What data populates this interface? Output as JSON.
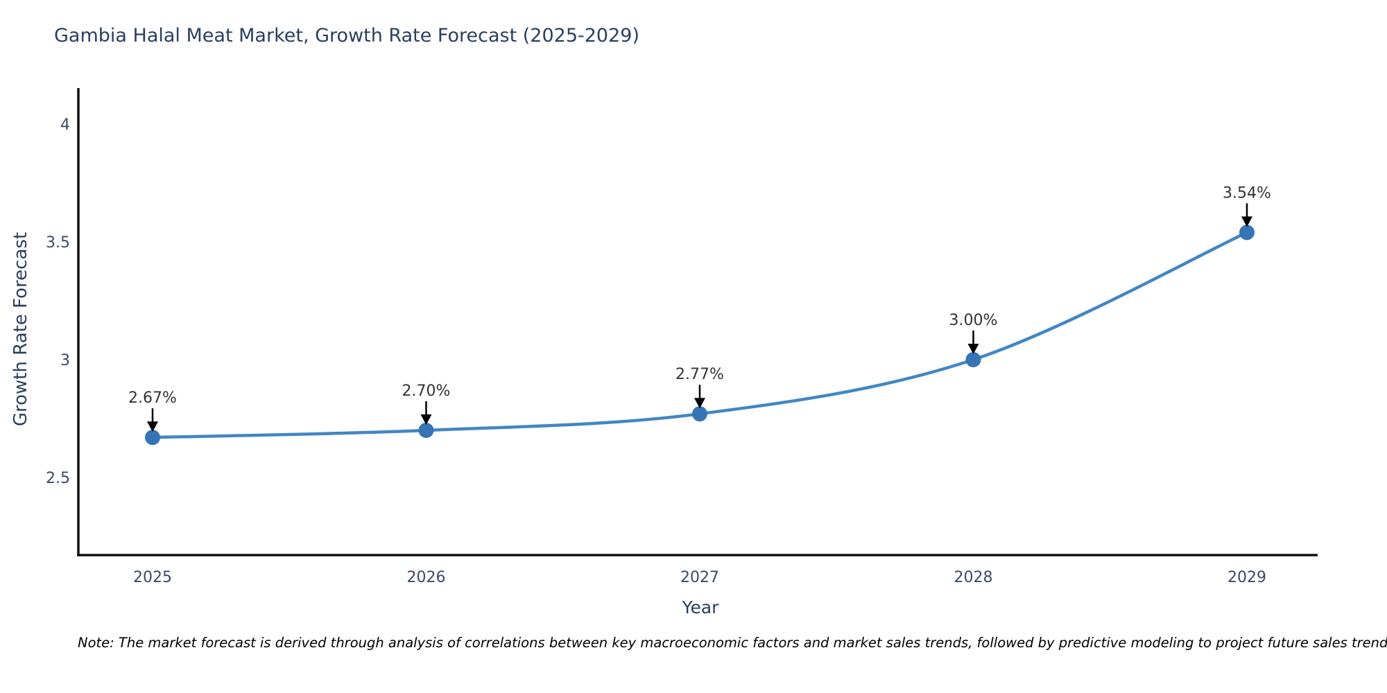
{
  "chart_data": {
    "type": "line",
    "title": "Gambia Halal Meat Market, Growth Rate Forecast (2025-2029)",
    "xlabel": "Year",
    "ylabel": "Growth Rate Forecast",
    "x": [
      2025,
      2026,
      2027,
      2028,
      2029
    ],
    "y": [
      2.67,
      2.7,
      2.77,
      3.0,
      3.54
    ],
    "point_labels": [
      "2.67%",
      "2.70%",
      "2.77%",
      "3.00%",
      "3.54%"
    ],
    "x_tick_labels": [
      "2025",
      "2026",
      "2027",
      "2028",
      "2029"
    ],
    "y_tick_values": [
      2.5,
      3,
      3.5,
      4
    ],
    "y_tick_labels": [
      "2.5",
      "3",
      "3.5",
      "4"
    ],
    "ylim": [
      2.17,
      4.15
    ],
    "grid": false,
    "line_shape": "spline",
    "legend": "none",
    "colors": {
      "line": "#4286c4",
      "marker": "#3674b5",
      "arrow": "#000000",
      "axis": "#111111",
      "title": "#2a3f5f",
      "tick": "#3b4a63",
      "annotation": "#333333"
    }
  },
  "note": "Note: The market forecast is derived through analysis of correlations between key macroeconomic factors and market sales trends, followed by predictive modeling to project future sales trends."
}
